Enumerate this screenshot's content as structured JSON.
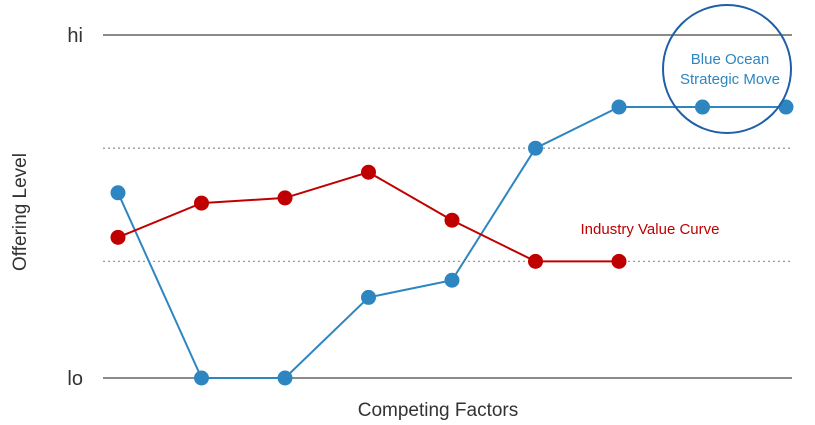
{
  "chart_data": {
    "type": "line",
    "title": "",
    "xlabel": "Competing Factors",
    "ylabel": "Offering Level",
    "ylim": [
      0,
      100
    ],
    "y_ticks": [
      {
        "value": 0,
        "label": "lo"
      },
      {
        "value": 100,
        "label": "hi"
      }
    ],
    "grid_dotted_values": [
      34,
      67
    ],
    "x": [
      1,
      2,
      3,
      4,
      5,
      6,
      7,
      8,
      9
    ],
    "xlim": [
      1,
      9
    ],
    "series": [
      {
        "name": "Industry Value Curve",
        "color": "#c00000",
        "x": [
          1,
          2,
          3,
          4,
          5,
          6,
          7
        ],
        "values": [
          41,
          51,
          52.5,
          60,
          46,
          34,
          34
        ]
      },
      {
        "name": "Blue Ocean Strategic Move",
        "color": "#2e86c1",
        "x": [
          1,
          2,
          3,
          4,
          5,
          6,
          7,
          8,
          9
        ],
        "values": [
          54,
          0,
          0,
          23.5,
          28.5,
          67,
          79,
          79,
          79
        ]
      }
    ],
    "annotations": [
      {
        "series": 0,
        "lines": [
          "Industry Value Curve"
        ],
        "color": "#c00000"
      },
      {
        "series": 1,
        "lines": [
          "Blue Ocean",
          "Strategic Move"
        ],
        "color": "#2e86c1",
        "circled": true
      }
    ]
  }
}
